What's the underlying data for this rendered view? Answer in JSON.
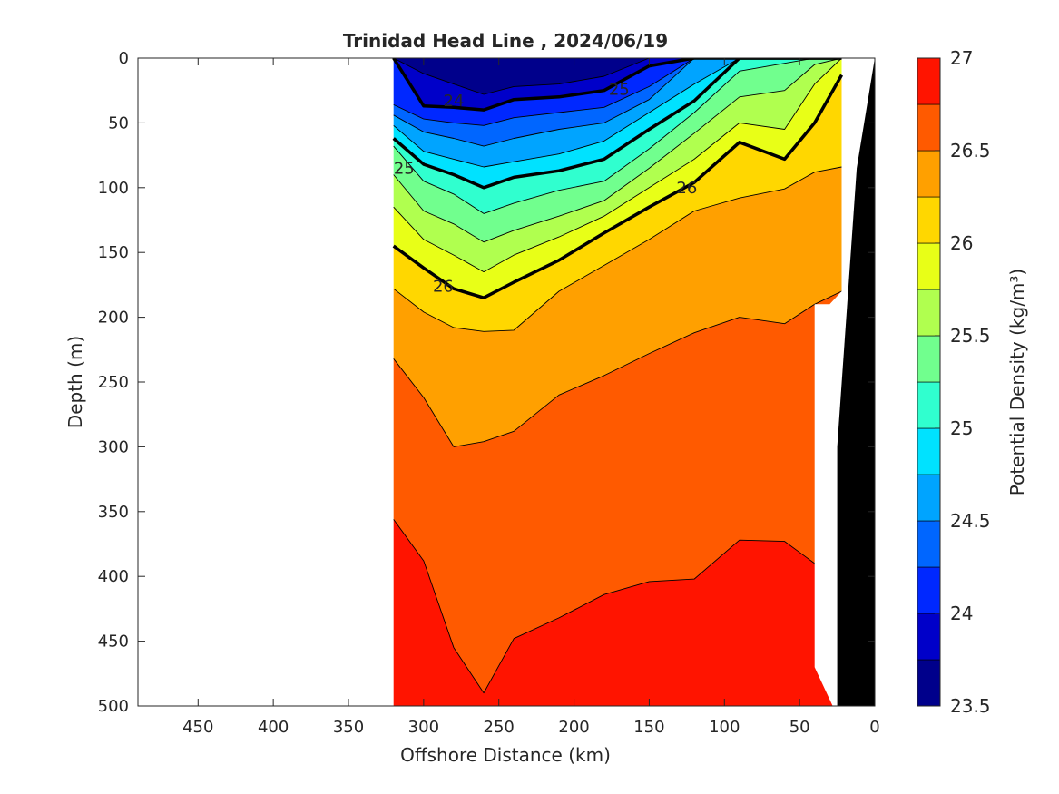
{
  "chart_data": {
    "type": "contourf",
    "title": "Trinidad Head Line , 2024/06/19",
    "xlabel": "Offshore Distance (km)",
    "ylabel": "Depth (m)",
    "colorbar_label": "Potential Density (kg/m³)",
    "x_reversed": true,
    "xlim": [
      0,
      490
    ],
    "ylim": [
      0,
      500
    ],
    "y_reversed": true,
    "x_ticks": [
      450,
      400,
      350,
      300,
      250,
      200,
      150,
      100,
      50,
      0
    ],
    "y_ticks": [
      0,
      50,
      100,
      150,
      200,
      250,
      300,
      350,
      400,
      450,
      500
    ],
    "colorbar": {
      "min": 23.5,
      "max": 27,
      "ticks": [
        23.5,
        24,
        24.5,
        25,
        25.5,
        26,
        26.5,
        27
      ],
      "levels": [
        23.5,
        23.75,
        24,
        24.25,
        24.5,
        24.75,
        25,
        25.25,
        25.5,
        25.75,
        26,
        26.25,
        26.5,
        26.75,
        27
      ],
      "colors": [
        "#00008b",
        "#0000c9",
        "#0028ff",
        "#0066ff",
        "#00a4ff",
        "#00e2ff",
        "#30ffcf",
        "#71ff8e",
        "#b0ff4f",
        "#e8ff17",
        "#ffd700",
        "#ffa000",
        "#ff5a00",
        "#ff1400",
        "#bc0000"
      ]
    },
    "data_x_range": [
      20,
      320
    ],
    "bold_contour_labels": [
      {
        "label": "24",
        "x": 280,
        "depth": 33
      },
      {
        "label": "25",
        "x": 313,
        "depth": 85
      },
      {
        "label": "25",
        "x": 170,
        "depth": 24
      },
      {
        "label": "26",
        "x": 287,
        "depth": 176
      },
      {
        "label": "26",
        "x": 125,
        "depth": 100
      }
    ],
    "section_profile": [
      {
        "x": 320,
        "isopycnals": {
          "23.75": 0,
          "24": 0,
          "24.25": 36,
          "24.5": 44,
          "24.75": 52,
          "25": 62,
          "25.25": 68,
          "25.5": 90,
          "25.75": 115,
          "26": 145,
          "26.25": 178,
          "26.5": 232,
          "26.75": 356
        }
      },
      {
        "x": 300,
        "isopycnals": {
          "23.75": 12,
          "24": 37,
          "24.25": 47,
          "24.5": 57,
          "24.75": 72,
          "25": 82,
          "25.25": 95,
          "25.5": 118,
          "25.75": 140,
          "26": 162,
          "26.25": 196,
          "26.5": 262,
          "26.75": 388
        }
      },
      {
        "x": 280,
        "isopycnals": {
          "23.75": 20,
          "24": 38,
          "24.25": 50,
          "24.5": 62,
          "24.75": 78,
          "25": 90,
          "25.25": 105,
          "25.5": 128,
          "25.75": 152,
          "26": 178,
          "26.25": 208,
          "26.5": 300,
          "26.75": 455
        }
      },
      {
        "x": 260,
        "isopycnals": {
          "23.75": 28,
          "24": 40,
          "24.25": 52,
          "24.5": 68,
          "24.75": 84,
          "25": 100,
          "25.25": 120,
          "25.5": 142,
          "25.75": 165,
          "26": 185,
          "26.25": 211,
          "26.5": 296,
          "26.75": 490
        }
      },
      {
        "x": 240,
        "isopycnals": {
          "23.75": 22,
          "24": 32,
          "24.25": 46,
          "24.5": 62,
          "24.75": 80,
          "25": 92,
          "25.25": 112,
          "25.5": 133,
          "25.75": 152,
          "26": 173,
          "26.25": 210,
          "26.5": 288,
          "26.75": 448
        }
      },
      {
        "x": 210,
        "isopycnals": {
          "23.75": 20,
          "24": 30,
          "24.25": 42,
          "24.5": 55,
          "24.75": 74,
          "25": 87,
          "25.25": 102,
          "25.5": 122,
          "25.75": 138,
          "26": 156,
          "26.25": 180,
          "26.5": 260,
          "26.75": 432
        }
      },
      {
        "x": 180,
        "isopycnals": {
          "23.75": 14,
          "24": 25,
          "24.25": 38,
          "24.5": 50,
          "24.75": 64,
          "25": 78,
          "25.25": 95,
          "25.5": 110,
          "25.75": 122,
          "26": 135,
          "26.25": 160,
          "26.5": 245,
          "26.75": 414
        }
      },
      {
        "x": 150,
        "isopycnals": {
          "23.75": 0,
          "24": 6,
          "24.25": 22,
          "24.5": 32,
          "24.75": 42,
          "25": 55,
          "25.25": 70,
          "25.5": 85,
          "25.75": 100,
          "26": 115,
          "26.25": 140,
          "26.5": 228,
          "26.75": 404
        }
      },
      {
        "x": 120,
        "isopycnals": {
          "23.75": 0,
          "24": 0,
          "24.25": 0,
          "24.5": 0,
          "24.75": 20,
          "25": 33,
          "25.25": 42,
          "25.5": 58,
          "25.75": 78,
          "26": 96,
          "26.25": 118,
          "26.5": 212,
          "26.75": 402
        }
      },
      {
        "x": 90,
        "isopycnals": {
          "23.75": 0,
          "24": 0,
          "24.25": 0,
          "24.5": 0,
          "24.75": 0,
          "25": 0,
          "25.25": 10,
          "25.5": 30,
          "25.75": 50,
          "26": 65,
          "26.25": 108,
          "26.5": 200,
          "26.75": 372
        }
      },
      {
        "x": 60,
        "isopycnals": {
          "23.75": 0,
          "24": 0,
          "24.25": 0,
          "24.5": 0,
          "24.75": 0,
          "25": 0,
          "25.25": 4,
          "25.5": 25,
          "25.75": 55,
          "26": 78,
          "26.25": 101,
          "26.5": 205,
          "26.75": 373
        }
      },
      {
        "x": 40,
        "isopycnals": {
          "23.75": 0,
          "24": 0,
          "24.25": 0,
          "24.5": 0,
          "24.75": 0,
          "25": 0,
          "25.25": 0,
          "25.5": 5,
          "25.75": 20,
          "26": 50,
          "26.25": 88,
          "26.5": 190,
          "26.75": 390
        }
      },
      {
        "x": 22,
        "isopycnals": {
          "23.75": 0,
          "24": 0,
          "24.25": 0,
          "24.5": 0,
          "24.75": 0,
          "25": 0,
          "25.25": 0,
          "25.5": 0,
          "25.75": 0,
          "26": 13,
          "26.25": 84,
          "26.5": 180,
          "26.75": 440
        }
      }
    ]
  }
}
